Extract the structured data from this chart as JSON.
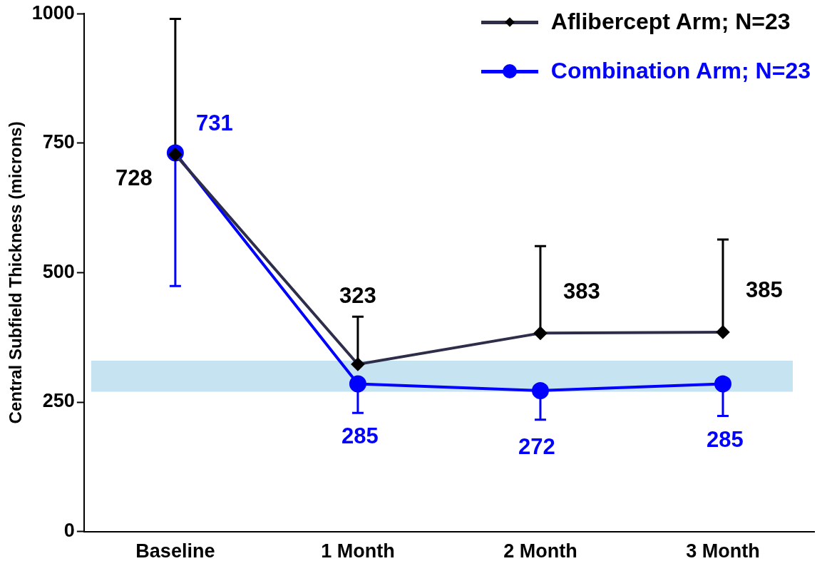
{
  "chart_data": {
    "type": "line",
    "ylabel": "Central Subfield Thickness (microns)",
    "categories": [
      "Baseline",
      "1 Month",
      "2 Month",
      "3 Month"
    ],
    "series": [
      {
        "name": "Aflibercept Arm; N=23",
        "color": "#2e2d4a",
        "marker": "diamond",
        "values": [
          728,
          323,
          383,
          385
        ],
        "errors": [
          [
            728,
            990
          ],
          [
            323,
            415
          ],
          [
            383,
            551
          ],
          [
            385,
            564
          ]
        ]
      },
      {
        "name": "Combination Arm; N=23",
        "color": "#0000ff",
        "marker": "circle",
        "values": [
          731,
          285,
          272,
          285
        ],
        "errors": [
          [
            474,
            731
          ],
          [
            229,
            285
          ],
          [
            216,
            272
          ],
          [
            223,
            285
          ]
        ]
      }
    ],
    "ylim": [
      0,
      1000
    ],
    "yticks": [
      0,
      250,
      500,
      750,
      1000
    ],
    "grid": false,
    "legend": "top right",
    "data_labels": true,
    "bands": [
      {
        "axis": "y",
        "from": 270,
        "to": 330,
        "color": "#c5e3f0"
      }
    ]
  }
}
